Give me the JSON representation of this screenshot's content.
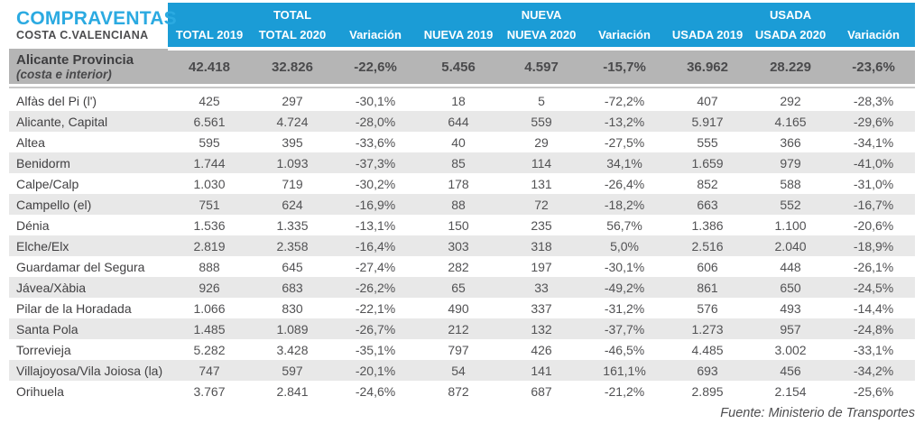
{
  "colors": {
    "header_blue": "#1b9cd6",
    "title_cyan": "#2baae1",
    "summary_gray": "#b5b5b5",
    "stripe_gray": "#e8e8e8",
    "text_dark": "#414042"
  },
  "chart_data": {
    "type": "table",
    "title": "COMPRAVENTAS",
    "subtitle": "COSTA C.VALENCIANA",
    "column_groups": [
      "TOTAL",
      "NUEVA",
      "USADA"
    ],
    "columns": [
      "TOTAL 2019",
      "TOTAL 2020",
      "Variación",
      "NUEVA 2019",
      "NUEVA 2020",
      "Variación",
      "USADA 2019",
      "USADA 2020",
      "Variación"
    ],
    "summary_row": {
      "name": "Alicante Provincia",
      "subname": "(costa e interior)",
      "values": [
        "42.418",
        "32.826",
        "-22,6%",
        "5.456",
        "4.597",
        "-15,7%",
        "36.962",
        "28.229",
        "-23,6%"
      ]
    },
    "rows": [
      {
        "name": "Alfàs del Pi (l')",
        "values": [
          "425",
          "297",
          "-30,1%",
          "18",
          "5",
          "-72,2%",
          "407",
          "292",
          "-28,3%"
        ]
      },
      {
        "name": "Alicante, Capital",
        "values": [
          "6.561",
          "4.724",
          "-28,0%",
          "644",
          "559",
          "-13,2%",
          "5.917",
          "4.165",
          "-29,6%"
        ]
      },
      {
        "name": "Altea",
        "values": [
          "595",
          "395",
          "-33,6%",
          "40",
          "29",
          "-27,5%",
          "555",
          "366",
          "-34,1%"
        ]
      },
      {
        "name": "Benidorm",
        "values": [
          "1.744",
          "1.093",
          "-37,3%",
          "85",
          "114",
          "34,1%",
          "1.659",
          "979",
          "-41,0%"
        ]
      },
      {
        "name": "Calpe/Calp",
        "values": [
          "1.030",
          "719",
          "-30,2%",
          "178",
          "131",
          "-26,4%",
          "852",
          "588",
          "-31,0%"
        ]
      },
      {
        "name": "Campello (el)",
        "values": [
          "751",
          "624",
          "-16,9%",
          "88",
          "72",
          "-18,2%",
          "663",
          "552",
          "-16,7%"
        ]
      },
      {
        "name": "Dénia",
        "values": [
          "1.536",
          "1.335",
          "-13,1%",
          "150",
          "235",
          "56,7%",
          "1.386",
          "1.100",
          "-20,6%"
        ]
      },
      {
        "name": "Elche/Elx",
        "values": [
          "2.819",
          "2.358",
          "-16,4%",
          "303",
          "318",
          "5,0%",
          "2.516",
          "2.040",
          "-18,9%"
        ]
      },
      {
        "name": "Guardamar del Segura",
        "values": [
          "888",
          "645",
          "-27,4%",
          "282",
          "197",
          "-30,1%",
          "606",
          "448",
          "-26,1%"
        ]
      },
      {
        "name": "Jávea/Xàbia",
        "values": [
          "926",
          "683",
          "-26,2%",
          "65",
          "33",
          "-49,2%",
          "861",
          "650",
          "-24,5%"
        ]
      },
      {
        "name": "Pilar de la Horadada",
        "values": [
          "1.066",
          "830",
          "-22,1%",
          "490",
          "337",
          "-31,2%",
          "576",
          "493",
          "-14,4%"
        ]
      },
      {
        "name": "Santa Pola",
        "values": [
          "1.485",
          "1.089",
          "-26,7%",
          "212",
          "132",
          "-37,7%",
          "1.273",
          "957",
          "-24,8%"
        ]
      },
      {
        "name": "Torrevieja",
        "values": [
          "5.282",
          "3.428",
          "-35,1%",
          "797",
          "426",
          "-46,5%",
          "4.485",
          "3.002",
          "-33,1%"
        ]
      },
      {
        "name": "Villajoyosa/Vila Joiosa (la)",
        "values": [
          "747",
          "597",
          "-20,1%",
          "54",
          "141",
          "161,1%",
          "693",
          "456",
          "-34,2%"
        ]
      },
      {
        "name": "Orihuela",
        "values": [
          "3.767",
          "2.841",
          "-24,6%",
          "872",
          "687",
          "-21,2%",
          "2.895",
          "2.154",
          "-25,6%"
        ]
      }
    ],
    "source": "Fuente: Ministerio de Transportes"
  }
}
